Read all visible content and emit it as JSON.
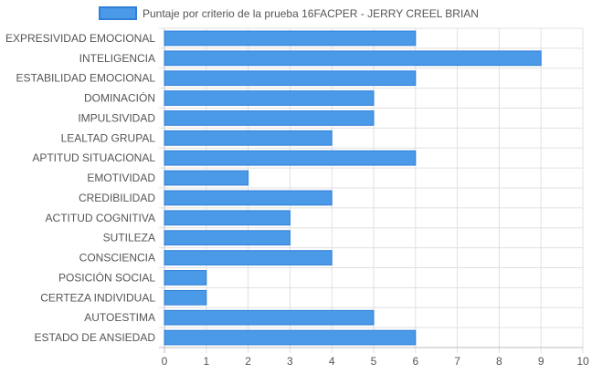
{
  "chart_data": {
    "type": "bar",
    "orientation": "horizontal",
    "legend_position": "top",
    "grid": true,
    "xlim": [
      0,
      10
    ],
    "x_ticks": [
      0,
      1,
      2,
      3,
      4,
      5,
      6,
      7,
      8,
      9,
      10
    ],
    "categories": [
      "EXPRESIVIDAD EMOCIONAL",
      "INTELIGENCIA",
      "ESTABILIDAD EMOCIONAL",
      "DOMINACIÓN",
      "IMPULSIVIDAD",
      "LEALTAD GRUPAL",
      "APTITUD SITUACIONAL",
      "EMOTIVIDAD",
      "CREDIBILIDAD",
      "ACTITUD COGNITIVA",
      "SUTILEZA",
      "CONSCIENCIA",
      "POSICIÓN SOCIAL",
      "CERTEZA INDIVIDUAL",
      "AUTOESTIMA",
      "ESTADO DE ANSIEDAD"
    ],
    "series": [
      {
        "name": "Puntaje por criterio de la prueba 16FACPER - JERRY CREEL BRIAN",
        "values": [
          6,
          9,
          6,
          5,
          5,
          4,
          6,
          2,
          4,
          3,
          3,
          4,
          1,
          1,
          5,
          6
        ],
        "color": "#4a9ae8",
        "border_color": "#2f7fd9"
      }
    ],
    "grid_color": "#e0e0e0",
    "axis_color": "#bdbdbd",
    "text_color": "#555555"
  }
}
